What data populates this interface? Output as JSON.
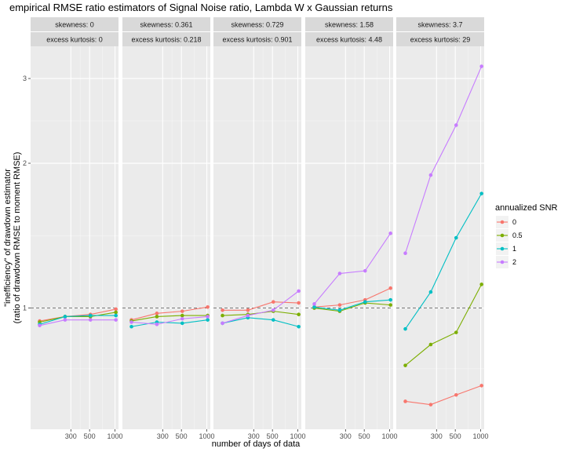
{
  "chart_data": {
    "type": "line",
    "title": "empirical RMSE ratio estimators of Signal Noise ratio, Lambda W x Gaussian returns",
    "xlabel": "number of days of data",
    "ylabel_line1": "\"inefficiency\" of drawdown estimator",
    "ylabel_line2": "(ratio of drawdown RMSE to moment RMSE)",
    "x_scale": "log",
    "y_scale": "log",
    "x_ticks": [
      300,
      500,
      1000
    ],
    "x_tick_labels": [
      "300",
      "500",
      "1000"
    ],
    "xlim": [
      100,
      1100
    ],
    "y_ticks": [
      1,
      2,
      3
    ],
    "y_tick_labels": [
      "1",
      "2",
      "3"
    ],
    "ylim": [
      0.56,
      3.5
    ],
    "reference_line": {
      "y": 1,
      "style": "dashed",
      "color": "#666666"
    },
    "legend": {
      "title": "annualized SNR",
      "position": "right",
      "entries": [
        "0",
        "0.5",
        "1",
        "2"
      ]
    },
    "series_colors": [
      "#F8766D",
      "#7CAE00",
      "#00BFC4",
      "#C77CFF"
    ],
    "x": [
      128,
      256,
      512,
      1024
    ],
    "facets": [
      {
        "strip_line1": "skewness: 0",
        "strip_line2": "excess kurtosis: 0",
        "series": [
          {
            "name": "0",
            "values": [
              0.94,
              0.96,
              0.97,
              0.995
            ]
          },
          {
            "name": "0.5",
            "values": [
              0.935,
              0.96,
              0.96,
              0.98
            ]
          },
          {
            "name": "1",
            "values": [
              0.925,
              0.96,
              0.965,
              0.965
            ]
          },
          {
            "name": "2",
            "values": [
              0.92,
              0.945,
              0.945,
              0.945
            ]
          }
        ]
      },
      {
        "strip_line1": "skewness: 0.361",
        "strip_line2": "excess kurtosis: 0.218",
        "series": [
          {
            "name": "0",
            "values": [
              0.945,
              0.975,
              0.985,
              1.005
            ]
          },
          {
            "name": "0.5",
            "values": [
              0.94,
              0.96,
              0.965,
              0.965
            ]
          },
          {
            "name": "1",
            "values": [
              0.915,
              0.935,
              0.93,
              0.945
            ]
          },
          {
            "name": "2",
            "values": [
              0.935,
              0.925,
              0.95,
              0.96
            ]
          }
        ]
      },
      {
        "strip_line1": "skewness: 0.729",
        "strip_line2": "excess kurtosis: 0.901",
        "series": [
          {
            "name": "0",
            "values": [
              0.99,
              0.99,
              1.03,
              1.025
            ]
          },
          {
            "name": "0.5",
            "values": [
              0.965,
              0.97,
              0.985,
              0.97
            ]
          },
          {
            "name": "1",
            "values": [
              0.93,
              0.955,
              0.945,
              0.915
            ]
          },
          {
            "name": "2",
            "values": [
              0.93,
              0.965,
              0.99,
              1.085
            ]
          }
        ]
      },
      {
        "strip_line1": "skewness: 1.58",
        "strip_line2": "excess kurtosis: 4.48",
        "series": [
          {
            "name": "0",
            "values": [
              1.005,
              1.015,
              1.04,
              1.1
            ]
          },
          {
            "name": "0.5",
            "values": [
              1.0,
              0.985,
              1.025,
              1.015
            ]
          },
          {
            "name": "1",
            "values": [
              1.005,
              0.99,
              1.03,
              1.04
            ]
          },
          {
            "name": "2",
            "values": [
              1.02,
              1.18,
              1.195,
              1.43
            ]
          }
        ]
      },
      {
        "strip_line1": "skewness: 3.7",
        "strip_line2": "excess kurtosis: 29",
        "series": [
          {
            "name": "0",
            "values": [
              0.64,
              0.63,
              0.66,
              0.69
            ]
          },
          {
            "name": "0.5",
            "values": [
              0.76,
              0.84,
              0.89,
              1.12
            ]
          },
          {
            "name": "1",
            "values": [
              0.905,
              1.08,
              1.4,
              1.73
            ]
          },
          {
            "name": "2",
            "values": [
              1.3,
              1.89,
              2.4,
              3.18
            ]
          }
        ]
      }
    ]
  }
}
